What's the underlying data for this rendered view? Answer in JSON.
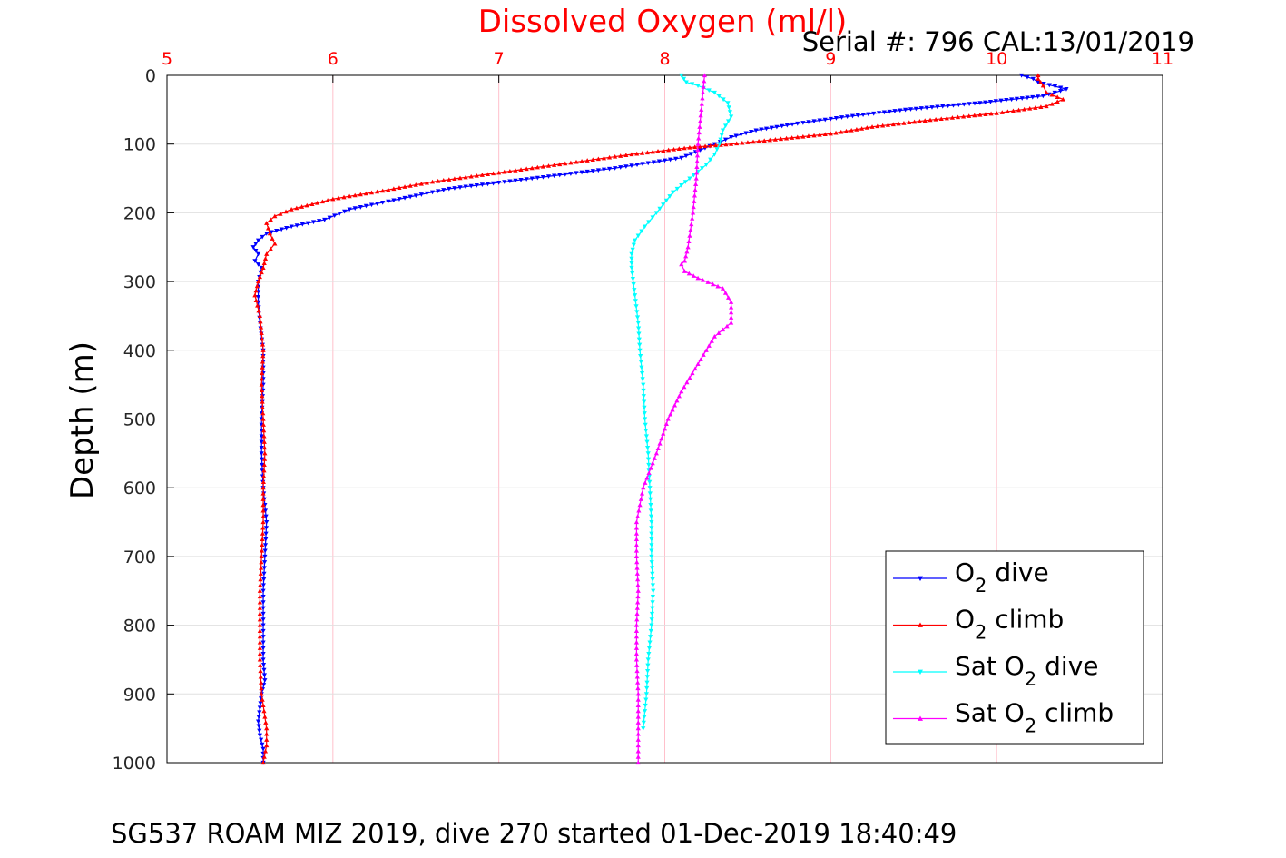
{
  "chart_data": {
    "type": "line",
    "title": "Dissolved Oxygen (ml/l)",
    "serial_text": "Serial #: 796  CAL:13/01/2019",
    "footer": "SG537 ROAM MIZ 2019, dive 270 started 01-Dec-2019 18:40:49",
    "xlabel": "",
    "ylabel": "Depth (m)",
    "xlim": [
      5,
      11
    ],
    "ylim": [
      0,
      1000
    ],
    "y_reversed": true,
    "x_axis_position": "top",
    "x_ticks": [
      "5",
      "6",
      "7",
      "8",
      "9",
      "10",
      "11"
    ],
    "y_ticks": [
      "0",
      "100",
      "200",
      "300",
      "400",
      "500",
      "600",
      "700",
      "800",
      "900",
      "1000"
    ],
    "grid": true,
    "legend_position": "bottom-right",
    "colors": {
      "title": "#ff0000",
      "x_tick": "#ff0000",
      "grid": "#ffc0cb",
      "o2_dive": "#0000ff",
      "o2_climb": "#ff0000",
      "sat_dive": "#00ffff",
      "sat_climb": "#ff00ff"
    },
    "series": [
      {
        "key": "o2_dive",
        "label_pre": "O",
        "label_sub": "2",
        "label_post": " dive",
        "marker": "triangle-down",
        "color": "#0000ff",
        "x": [
          10.15,
          10.22,
          10.25,
          10.42,
          10.28,
          9.9,
          9.45,
          9.1,
          8.8,
          8.55,
          8.4,
          8.3,
          8.1,
          7.7,
          7.2,
          6.7,
          6.4,
          6.1,
          5.95,
          5.75,
          5.6,
          5.55,
          5.52,
          5.55,
          5.53,
          5.57,
          5.55,
          5.55,
          5.56,
          5.58,
          5.58,
          5.57,
          5.57,
          5.58,
          5.6,
          5.59,
          5.58,
          5.58,
          5.58,
          5.59,
          5.57,
          5.56,
          5.55,
          5.56,
          5.58,
          5.58
        ],
        "y": [
          0,
          5,
          10,
          20,
          30,
          40,
          50,
          60,
          70,
          80,
          90,
          100,
          120,
          135,
          150,
          165,
          180,
          195,
          210,
          220,
          230,
          240,
          250,
          260,
          270,
          280,
          300,
          330,
          360,
          400,
          450,
          500,
          550,
          600,
          650,
          700,
          750,
          800,
          850,
          880,
          900,
          920,
          940,
          960,
          980,
          1000
        ]
      },
      {
        "key": "o2_climb",
        "label_pre": "O",
        "label_sub": "2",
        "label_post": " climb",
        "marker": "triangle-up",
        "color": "#ff0000",
        "x": [
          10.25,
          10.25,
          10.28,
          10.3,
          10.4,
          10.3,
          10.0,
          9.6,
          9.25,
          9.0,
          8.6,
          8.4,
          8.15,
          7.8,
          7.5,
          7.2,
          6.9,
          6.6,
          6.3,
          6.0,
          5.75,
          5.65,
          5.6,
          5.62,
          5.65,
          5.6,
          5.58,
          5.55,
          5.53,
          5.56,
          5.58,
          5.57,
          5.58,
          5.59,
          5.58,
          5.58,
          5.57,
          5.56,
          5.56,
          5.56,
          5.57,
          5.6,
          5.6,
          5.58
        ],
        "y": [
          0,
          5,
          15,
          25,
          35,
          45,
          55,
          65,
          75,
          85,
          95,
          100,
          105,
          115,
          125,
          135,
          145,
          155,
          168,
          180,
          195,
          205,
          215,
          230,
          245,
          260,
          280,
          300,
          320,
          350,
          400,
          450,
          500,
          550,
          600,
          650,
          700,
          750,
          800,
          850,
          900,
          950,
          975,
          1000
        ]
      },
      {
        "key": "sat_dive",
        "label_pre": "Sat O",
        "label_sub": "2",
        "label_post": " dive",
        "marker": "triangle-down",
        "color": "#00ffff",
        "x": [
          8.1,
          8.13,
          8.2,
          8.3,
          8.38,
          8.4,
          8.35,
          8.33,
          8.3,
          8.25,
          8.15,
          8.05,
          7.95,
          7.88,
          7.82,
          7.8,
          7.8,
          7.82,
          7.84,
          7.85,
          7.87,
          7.88,
          7.9,
          7.91,
          7.92,
          7.92,
          7.93,
          7.92,
          7.9,
          7.89,
          7.87
        ],
        "y": [
          0,
          10,
          15,
          25,
          40,
          60,
          80,
          100,
          115,
          130,
          150,
          170,
          200,
          220,
          240,
          260,
          280,
          320,
          360,
          400,
          450,
          500,
          550,
          600,
          650,
          700,
          750,
          800,
          850,
          900,
          950
        ]
      },
      {
        "key": "sat_climb",
        "label_pre": "Sat O",
        "label_sub": "2",
        "label_post": " climb",
        "marker": "triangle-up",
        "color": "#ff00ff",
        "x": [
          8.24,
          8.22,
          8.2,
          8.19,
          8.17,
          8.14,
          8.12,
          8.1,
          8.12,
          8.2,
          8.35,
          8.4,
          8.4,
          8.3,
          8.2,
          8.1,
          8.02,
          7.95,
          7.87,
          7.83,
          7.83,
          7.84,
          7.83,
          7.83,
          7.84,
          7.84,
          7.84
        ],
        "y": [
          0,
          50,
          100,
          150,
          200,
          250,
          270,
          275,
          285,
          295,
          310,
          330,
          360,
          380,
          420,
          460,
          500,
          550,
          600,
          650,
          700,
          750,
          800,
          850,
          900,
          950,
          1000
        ]
      }
    ]
  }
}
